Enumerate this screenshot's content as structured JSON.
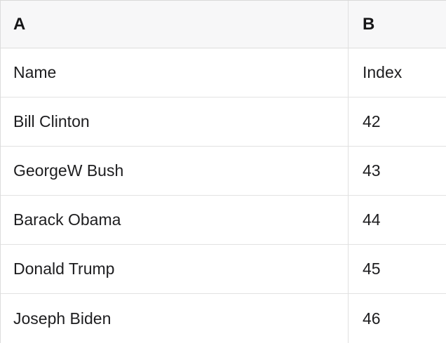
{
  "table": {
    "columns": [
      {
        "label": "A"
      },
      {
        "label": "B"
      }
    ],
    "rows": [
      {
        "a": "Name",
        "b": "Index"
      },
      {
        "a": "Bill Clinton",
        "b": "42"
      },
      {
        "a": "GeorgeW Bush",
        "b": "43"
      },
      {
        "a": "Barack Obama",
        "b": "44"
      },
      {
        "a": "Donald Trump",
        "b": "45"
      },
      {
        "a": "Joseph Biden",
        "b": "46"
      }
    ],
    "colors": {
      "header_bg": "#f7f7f8",
      "row_bg": "#ffffff",
      "grid_border": "#e0e0e0",
      "outer_border": "#d9d9d9",
      "text": "#1d1d1f"
    }
  }
}
